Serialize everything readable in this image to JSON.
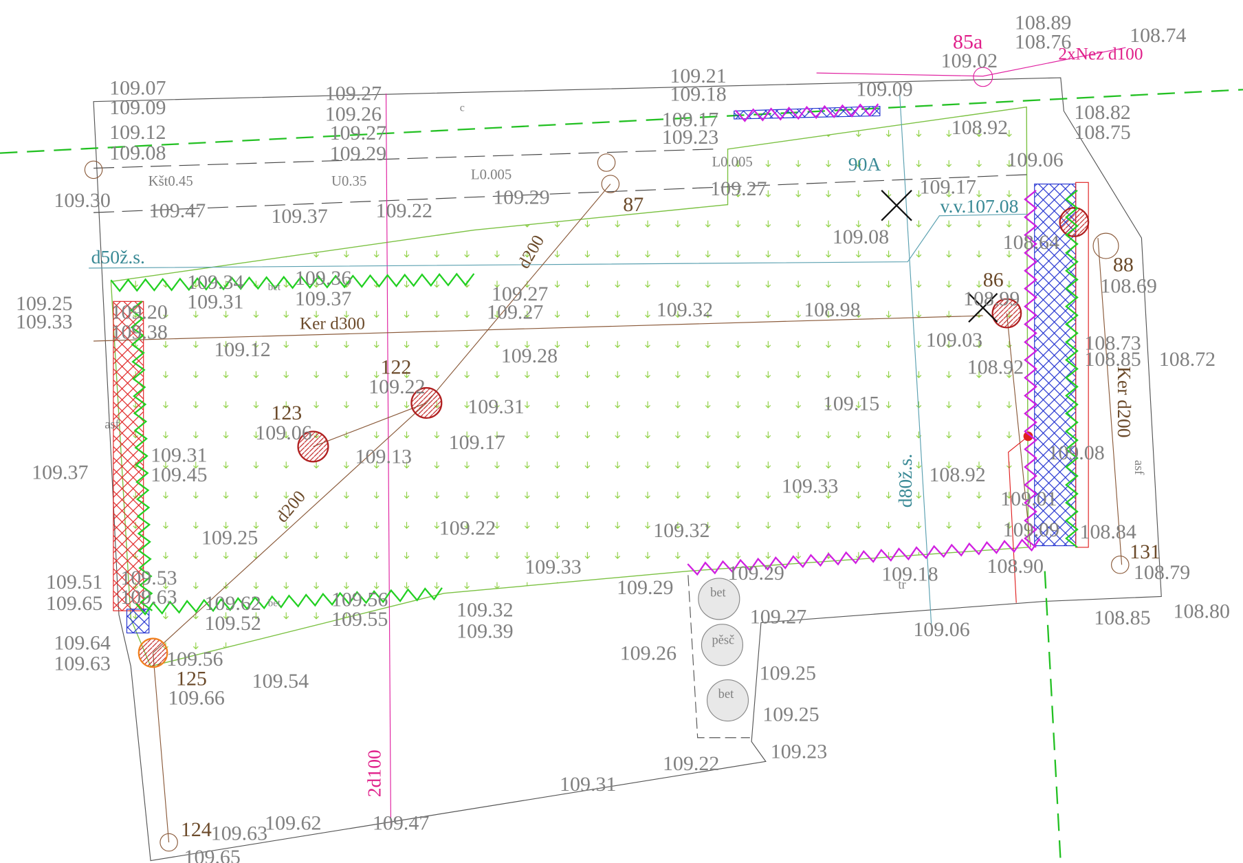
{
  "elevations": [
    "109.07",
    "109.09",
    "109.12",
    "109.08",
    "109.30",
    "109.47",
    "109.27",
    "109.26",
    "109.27",
    "109.29",
    "109.37",
    "109.22",
    "109.29",
    "109.21",
    "109.18",
    "109.17",
    "109.23",
    "109.27",
    "109.02",
    "108.89",
    "108.76",
    "108.74",
    "109.09",
    "108.82",
    "108.75",
    "108.92",
    "109.06",
    "109.17",
    "109.08",
    "108.64",
    "108.69",
    "108.99",
    "109.03",
    "108.92",
    "108.73",
    "108.85",
    "108.72",
    "109.08",
    "108.92",
    "109.01",
    "109.09",
    "108.84",
    "108.79",
    "108.90",
    "109.18",
    "108.85",
    "108.80",
    "109.06",
    "109.34",
    "109.31",
    "109.36",
    "109.37",
    "109.25",
    "109.33",
    "109.20",
    "109.38",
    "109.12",
    "109.27",
    "109.27",
    "109.32",
    "108.98",
    "109.28",
    "109.22",
    "109.31",
    "109.17",
    "109.06",
    "109.13",
    "109.15",
    "109.31",
    "109.45",
    "109.37",
    "109.33",
    "109.22",
    "109.32",
    "109.25",
    "109.33",
    "109.29",
    "109.29",
    "109.51",
    "109.65",
    "109.53",
    "109.63",
    "109.62",
    "109.52",
    "109.56",
    "109.55",
    "109.32",
    "109.39",
    "109.27",
    "109.26",
    "109.25",
    "109.25",
    "109.23",
    "109.22",
    "109.64",
    "109.63",
    "109.56",
    "109.54",
    "109.66",
    "109.31",
    "109.62",
    "109.63",
    "109.47",
    "109.65"
  ],
  "point_labels": [
    "85a",
    "87",
    "88",
    "86",
    "122",
    "123",
    "125",
    "124",
    "131"
  ],
  "annotations": [
    "c",
    "Kšt0.45",
    "U0.35",
    "L0.005",
    "L0.005",
    "90A",
    "v.v.107.08",
    "d50ž.s.",
    "Ker d300",
    "d200",
    "d200",
    "2d100",
    "d80ž.s.",
    "Ker d200",
    "2xNez d100",
    "asf",
    "asf",
    "bet",
    "pěsč",
    "bet",
    "tr",
    "bet",
    "bet"
  ]
}
